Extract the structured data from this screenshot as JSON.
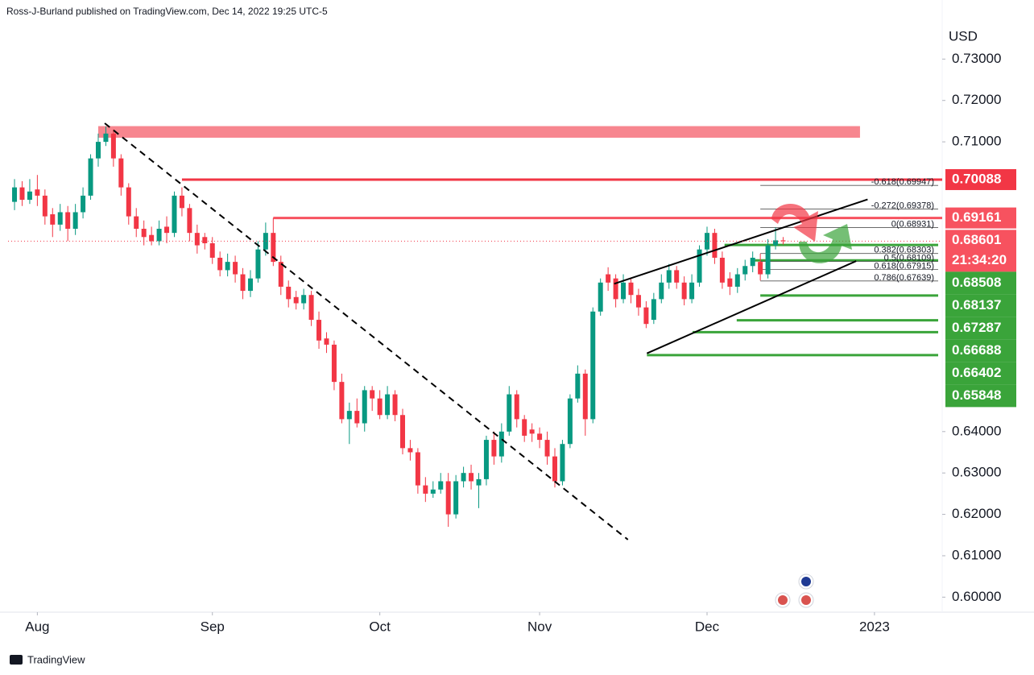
{
  "chart_data": {
    "type": "candlestick",
    "title": "Ross-J-Burland published on TradingView.com, Dec 14, 2022 19:25 UTC-5",
    "currency": "USD",
    "footer": "TradingView",
    "countdown": "21:34:20",
    "up_color": "#089981",
    "down_color": "#f23645",
    "xlim": [
      -0.85,
      121.9
    ],
    "xticks": [
      {
        "value": 3,
        "label": "Aug"
      },
      {
        "value": 26,
        "label": "Sep"
      },
      {
        "value": 48,
        "label": "Oct"
      },
      {
        "value": 69,
        "label": "Nov"
      },
      {
        "value": 91,
        "label": "Dec"
      },
      {
        "value": 113,
        "label": "2023"
      }
    ],
    "ylim": [
      0.59637,
      0.74427
    ],
    "yticks": [
      {
        "value": 0.73,
        "label": "0.73000"
      },
      {
        "value": 0.72,
        "label": "0.72000"
      },
      {
        "value": 0.71,
        "label": "0.71000"
      },
      {
        "value": 0.64,
        "label": "0.64000"
      },
      {
        "value": 0.63,
        "label": "0.63000"
      },
      {
        "value": 0.62,
        "label": "0.62000"
      },
      {
        "value": 0.61,
        "label": "0.61000"
      },
      {
        "value": 0.6,
        "label": "0.60000"
      }
    ],
    "open": [
      0.6955,
      0.699,
      0.696,
      0.6985,
      0.697,
      0.6925,
      0.69,
      0.693,
      0.689,
      0.693,
      0.697,
      0.706,
      0.71,
      0.712,
      0.706,
      0.699,
      0.692,
      0.689,
      0.6875,
      0.686,
      0.6895,
      0.688,
      0.697,
      0.694,
      0.688,
      0.687,
      0.6855,
      0.682,
      0.679,
      0.681,
      0.678,
      0.674,
      0.677,
      0.684,
      0.688,
      0.681,
      0.675,
      0.6725,
      0.671,
      0.673,
      0.667,
      0.6625,
      0.661,
      0.652,
      0.643,
      0.645,
      0.642,
      0.65,
      0.648,
      0.644,
      0.649,
      0.644,
      0.636,
      0.635,
      0.627,
      0.625,
      0.626,
      0.628,
      0.62,
      0.628,
      0.63,
      0.627,
      0.6285,
      0.638,
      0.634,
      0.64,
      0.649,
      0.643,
      0.6405,
      0.6395,
      0.638,
      0.634,
      0.628,
      0.637,
      0.648,
      0.654,
      0.643,
      0.669,
      0.678,
      0.677,
      0.672,
      0.676,
      0.673,
      0.67,
      0.667,
      0.672,
      0.676,
      0.679,
      0.676,
      0.672,
      0.676,
      0.684,
      0.688,
      0.682,
      0.677,
      0.675,
      0.678,
      0.68,
      0.681,
      0.678,
      0.685,
      0.6862
    ],
    "high": [
      0.701,
      0.7005,
      0.701,
      0.702,
      0.6985,
      0.694,
      0.695,
      0.6945,
      0.695,
      0.699,
      0.707,
      0.712,
      0.7137,
      0.713,
      0.707,
      0.7,
      0.694,
      0.691,
      0.6895,
      0.691,
      0.692,
      0.698,
      0.699,
      0.695,
      0.69,
      0.688,
      0.687,
      0.6835,
      0.683,
      0.6825,
      0.6795,
      0.679,
      0.686,
      0.6905,
      0.6916,
      0.6825,
      0.6765,
      0.674,
      0.6745,
      0.674,
      0.669,
      0.664,
      0.662,
      0.654,
      0.647,
      0.648,
      0.651,
      0.651,
      0.65,
      0.651,
      0.65,
      0.6455,
      0.638,
      0.636,
      0.629,
      0.628,
      0.63,
      0.63,
      0.6295,
      0.6315,
      0.632,
      0.63,
      0.639,
      0.64,
      0.642,
      0.651,
      0.65,
      0.644,
      0.642,
      0.641,
      0.64,
      0.636,
      0.638,
      0.649,
      0.656,
      0.655,
      0.67,
      0.677,
      0.6797,
      0.678,
      0.678,
      0.677,
      0.6745,
      0.6715,
      0.6735,
      0.678,
      0.6805,
      0.68,
      0.6775,
      0.678,
      0.685,
      0.6895,
      0.689,
      0.6835,
      0.6785,
      0.6795,
      0.6815,
      0.6835,
      0.683,
      0.6865,
      0.6893,
      0.687
    ],
    "low": [
      0.6935,
      0.6945,
      0.695,
      0.6945,
      0.69,
      0.687,
      0.6885,
      0.686,
      0.6875,
      0.6915,
      0.696,
      0.704,
      0.709,
      0.704,
      0.697,
      0.69,
      0.687,
      0.685,
      0.685,
      0.685,
      0.6855,
      0.687,
      0.692,
      0.686,
      0.683,
      0.684,
      0.6805,
      0.6775,
      0.6775,
      0.676,
      0.672,
      0.6725,
      0.676,
      0.6825,
      0.68,
      0.673,
      0.67,
      0.6695,
      0.6695,
      0.6655,
      0.66,
      0.659,
      0.65,
      0.642,
      0.637,
      0.641,
      0.64,
      0.645,
      0.643,
      0.643,
      0.6425,
      0.6345,
      0.633,
      0.625,
      0.623,
      0.624,
      0.625,
      0.617,
      0.619,
      0.6265,
      0.626,
      0.6215,
      0.627,
      0.632,
      0.6325,
      0.639,
      0.641,
      0.6375,
      0.6375,
      0.636,
      0.632,
      0.6265,
      0.627,
      0.636,
      0.647,
      0.639,
      0.642,
      0.668,
      0.674,
      0.67,
      0.671,
      0.671,
      0.668,
      0.665,
      0.666,
      0.671,
      0.6745,
      0.6745,
      0.6705,
      0.671,
      0.675,
      0.6825,
      0.6805,
      0.6745,
      0.673,
      0.6735,
      0.6765,
      0.6785,
      0.6765,
      0.677,
      0.684,
      0.6852
    ],
    "close": [
      0.699,
      0.696,
      0.698,
      0.697,
      0.692,
      0.69,
      0.693,
      0.689,
      0.693,
      0.697,
      0.706,
      0.71,
      0.712,
      0.706,
      0.699,
      0.692,
      0.689,
      0.687,
      0.686,
      0.689,
      0.688,
      0.697,
      0.694,
      0.688,
      0.685,
      0.6855,
      0.682,
      0.679,
      0.681,
      0.678,
      0.674,
      0.677,
      0.684,
      0.688,
      0.681,
      0.675,
      0.672,
      0.671,
      0.673,
      0.667,
      0.662,
      0.661,
      0.652,
      0.643,
      0.645,
      0.642,
      0.65,
      0.648,
      0.644,
      0.649,
      0.644,
      0.636,
      0.635,
      0.627,
      0.625,
      0.626,
      0.628,
      0.62,
      0.628,
      0.63,
      0.628,
      0.6285,
      0.638,
      0.634,
      0.64,
      0.649,
      0.643,
      0.639,
      0.6395,
      0.638,
      0.634,
      0.628,
      0.637,
      0.648,
      0.654,
      0.643,
      0.669,
      0.676,
      0.676,
      0.672,
      0.676,
      0.673,
      0.67,
      0.666,
      0.672,
      0.676,
      0.679,
      0.676,
      0.672,
      0.676,
      0.684,
      0.688,
      0.682,
      0.676,
      0.675,
      0.678,
      0.68,
      0.682,
      0.678,
      0.685,
      0.6862,
      0.68601
    ],
    "zone": {
      "from": 0.711,
      "to": 0.7138,
      "x_start": 11,
      "x_end": 111.1,
      "color": "#f7868f"
    },
    "resistance": [
      {
        "price": 0.70088,
        "x_start": 22,
        "color": "#f23645"
      },
      {
        "price": 0.69161,
        "x_start": 34,
        "color": "#f7525f"
      }
    ],
    "support": [
      {
        "price": 0.68508,
        "x_start": 93.3
      },
      {
        "price": 0.68137,
        "x_start": 97
      },
      {
        "price": 0.67287,
        "x_start": 98
      },
      {
        "price": 0.66688,
        "x_start": 94.9
      },
      {
        "price": 0.66402,
        "x_start": 89.1
      },
      {
        "price": 0.65848,
        "x_start": 83.1
      }
    ],
    "support_color": "#3aa43a",
    "fib_x_start": 98,
    "fib": [
      {
        "price": 0.69947,
        "label": "-0.618(0.69947)"
      },
      {
        "price": 0.69378,
        "label": "-0.272(0.69378)"
      },
      {
        "price": 0.68931,
        "label": "0(0.68931)"
      },
      {
        "price": 0.68303,
        "label": "0.382(0.68303)"
      },
      {
        "price": 0.68109,
        "label": "0.5(0.68109)"
      },
      {
        "price": 0.67915,
        "label": "0.618(0.67915)"
      },
      {
        "price": 0.67639,
        "label": "0.786(0.67639)"
      }
    ],
    "trendlines": [
      {
        "x": [
          11.85,
          80.6
        ],
        "y": [
          0.7145,
          0.6139
        ],
        "dashed": true
      },
      {
        "x": [
          78.8,
          112.1
        ],
        "y": [
          0.6757,
          0.6961
        ],
        "dashed": false
      },
      {
        "x": [
          83.1,
          110.6
        ],
        "y": [
          0.6589,
          0.6812
        ],
        "dashed": false
      }
    ]
  }
}
